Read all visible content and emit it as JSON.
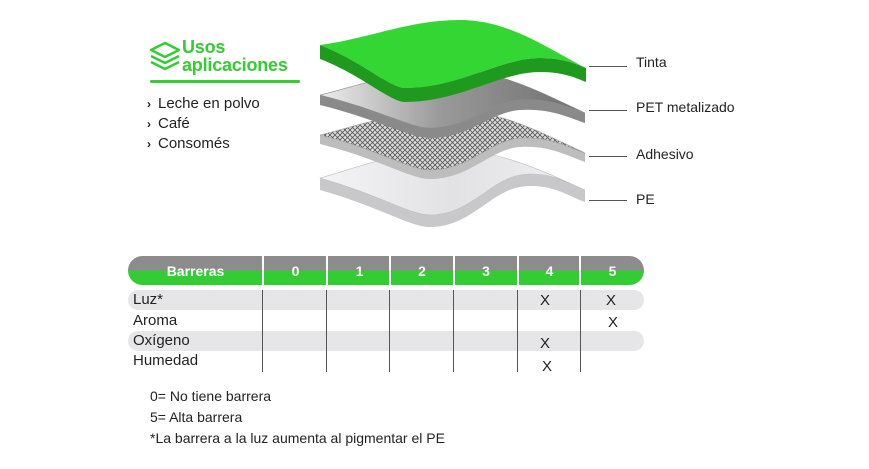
{
  "uses": {
    "title_line1": "Usos",
    "title_line2": "aplicaciones",
    "icon": "layers-icon",
    "items": [
      "Leche en polvo",
      "Café",
      "Consomés"
    ],
    "accent": "#33cc33"
  },
  "layers": [
    {
      "label": "Tinta",
      "color": "#33d633"
    },
    {
      "label": "PET metalizado",
      "color": "#b8b8b8"
    },
    {
      "label": "Adhesivo",
      "color": "#d4d4d4"
    },
    {
      "label": "PE",
      "color": "#e8e8ea"
    }
  ],
  "table": {
    "header": [
      "Barreras",
      "0",
      "1",
      "2",
      "3",
      "4",
      "5"
    ],
    "rows": [
      {
        "label": "Luz*",
        "marks": [
          "",
          "",
          "",
          "",
          "X",
          "X"
        ]
      },
      {
        "label": "Aroma",
        "marks": [
          "",
          "",
          "",
          "",
          "",
          "X"
        ]
      },
      {
        "label": "Oxígeno",
        "marks": [
          "",
          "",
          "",
          "",
          "X",
          ""
        ]
      },
      {
        "label": "Humedad",
        "marks": [
          "",
          "",
          "",
          "",
          "X",
          ""
        ]
      }
    ]
  },
  "notes": [
    "0= No tiene barrera",
    "5= Alta barrera",
    "*La barrera a la luz aumenta al pigmentar el PE"
  ]
}
